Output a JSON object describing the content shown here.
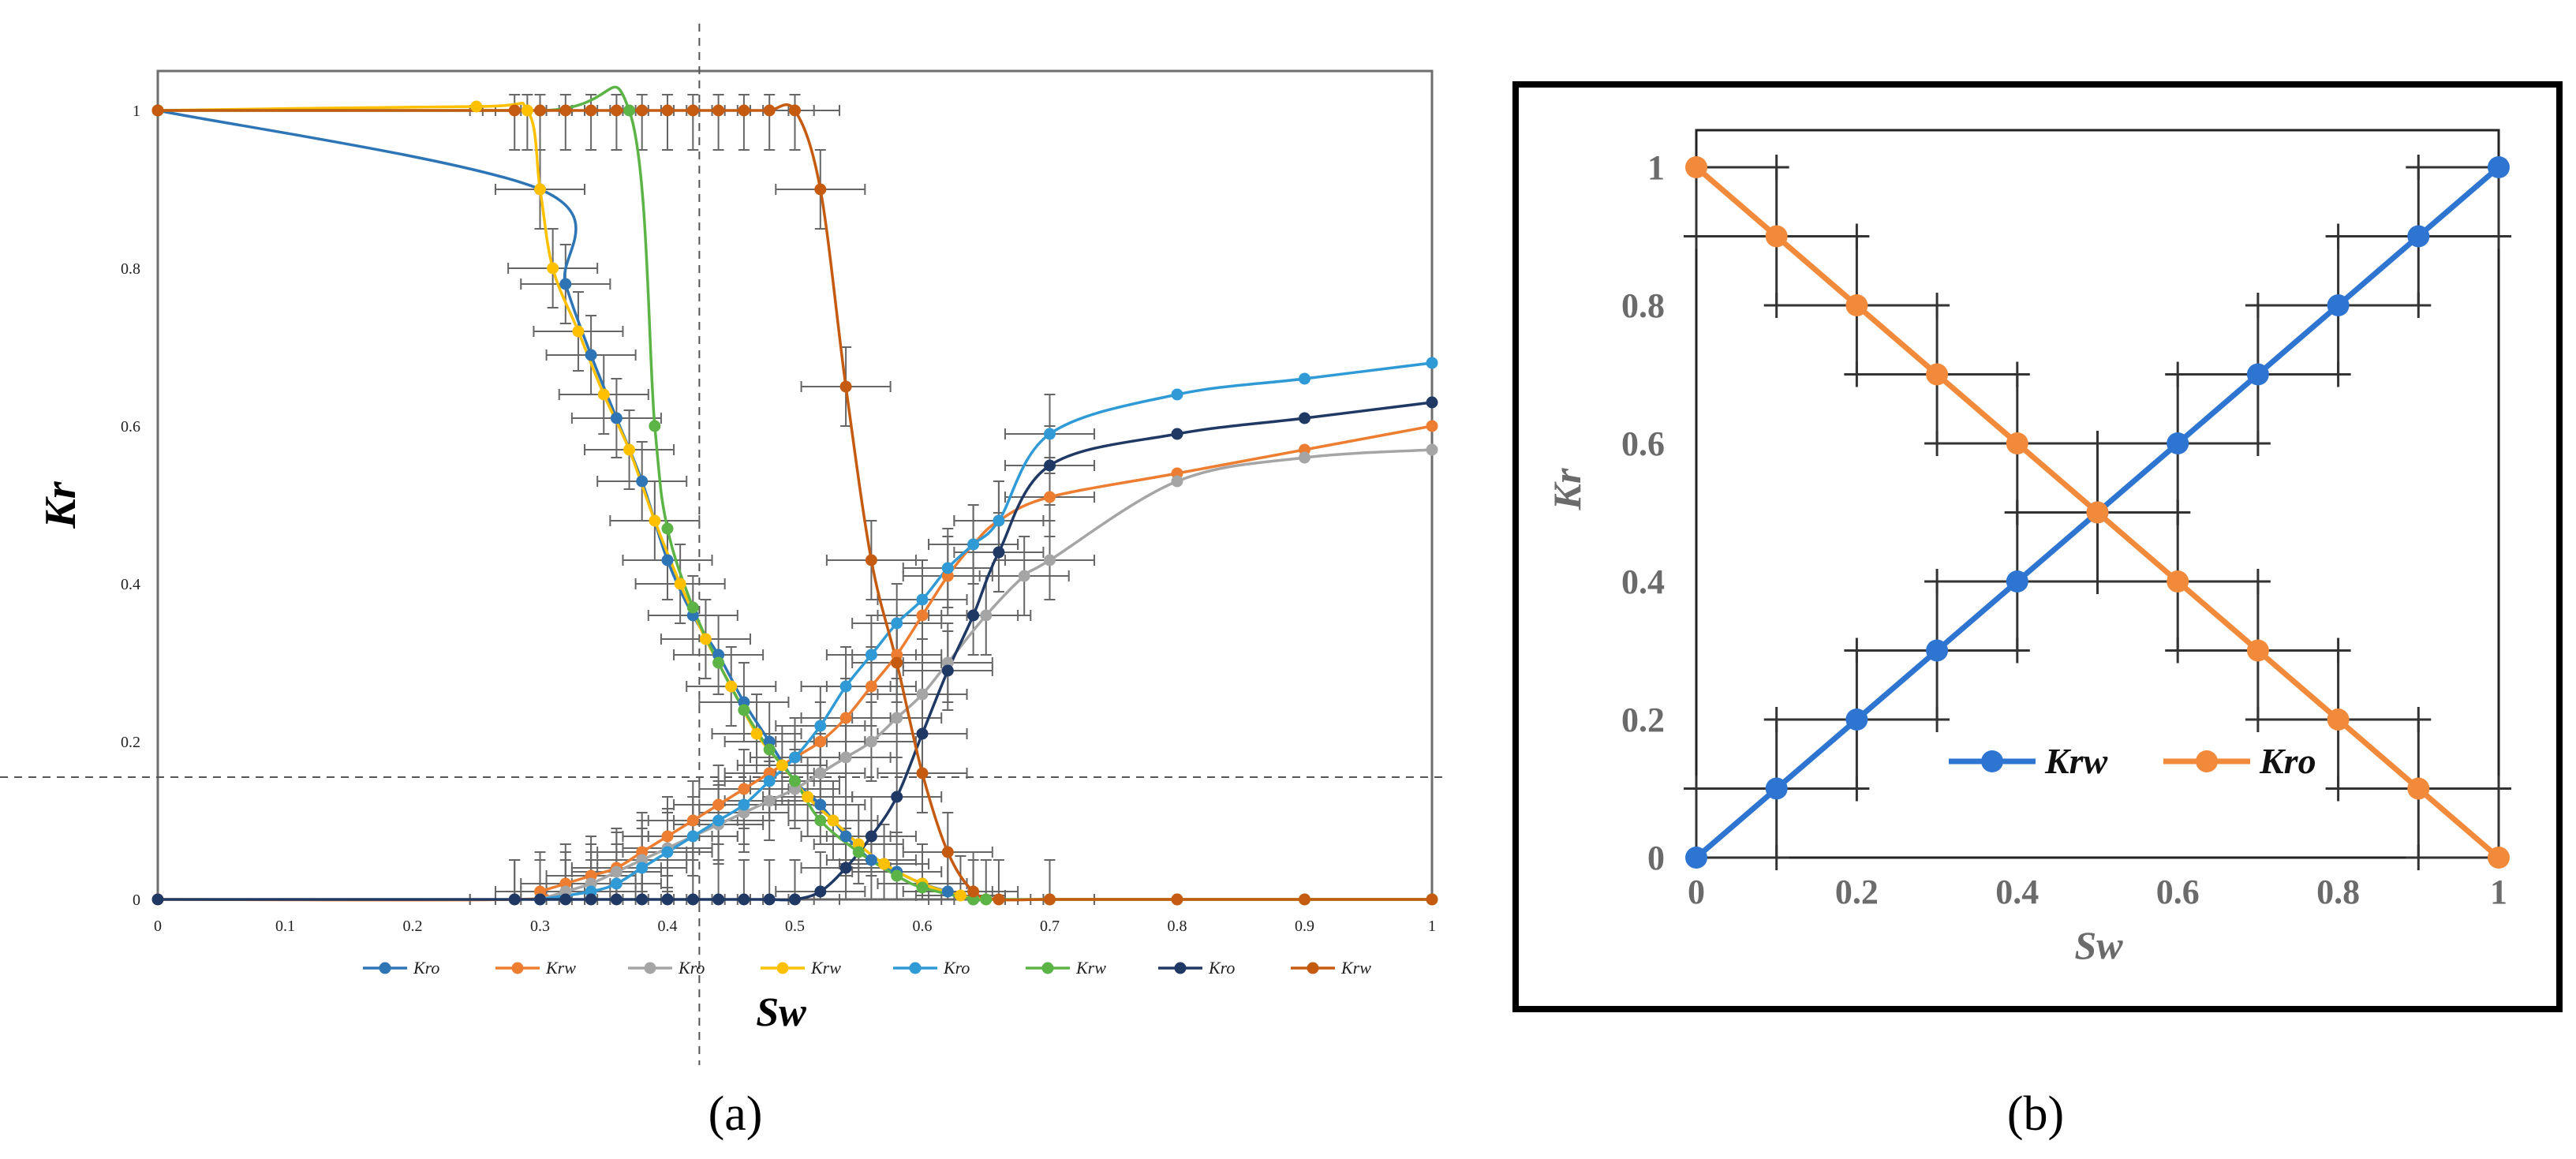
{
  "panel_labels": {
    "a": "(a)",
    "b": "(b)"
  },
  "chart_data": [
    {
      "type": "line",
      "panel": "a",
      "xlabel": "Sw",
      "ylabel": "Kr",
      "xlim": [
        0,
        1
      ],
      "ylim": [
        0,
        1
      ],
      "xticks": [
        "0",
        "0.1",
        "0.2",
        "0.3",
        "0.4",
        "0.5",
        "0.6",
        "0.7",
        "0.8",
        "0.9",
        "1"
      ],
      "yticks": [
        "0",
        "0.2",
        "0.4",
        "0.6",
        "0.8",
        "1"
      ],
      "crosshair": {
        "x": 0.425,
        "y": 0.155
      },
      "legend_position": "bottom",
      "series": [
        {
          "name": "Kro",
          "color": "#2e75b6",
          "errorbars": true,
          "x": [
            0,
            0.3,
            0.32,
            0.34,
            0.36,
            0.38,
            0.4,
            0.42,
            0.44,
            0.46,
            0.48,
            0.5,
            0.52,
            0.54,
            0.56,
            0.58,
            0.6,
            0.62,
            0.64
          ],
          "y": [
            1,
            0.9,
            0.78,
            0.69,
            0.61,
            0.53,
            0.43,
            0.36,
            0.31,
            0.25,
            0.2,
            0.15,
            0.12,
            0.08,
            0.05,
            0.035,
            0.02,
            0.01,
            0
          ]
        },
        {
          "name": "Krw",
          "color": "#ed7d31",
          "errorbars": true,
          "x": [
            0,
            0.28,
            0.3,
            0.32,
            0.34,
            0.36,
            0.38,
            0.4,
            0.42,
            0.44,
            0.46,
            0.48,
            0.5,
            0.52,
            0.54,
            0.56,
            0.58,
            0.6,
            0.62,
            0.64,
            0.66,
            0.7,
            0.8,
            0.9,
            1
          ],
          "y": [
            0,
            0,
            0.01,
            0.02,
            0.03,
            0.04,
            0.06,
            0.08,
            0.1,
            0.12,
            0.14,
            0.16,
            0.18,
            0.2,
            0.23,
            0.27,
            0.31,
            0.36,
            0.41,
            0.45,
            0.48,
            0.51,
            0.54,
            0.57,
            0.6
          ]
        },
        {
          "name": "Kro",
          "color": "#a5a5a5",
          "errorbars": true,
          "x": [
            0.3,
            0.32,
            0.34,
            0.36,
            0.38,
            0.4,
            0.42,
            0.44,
            0.46,
            0.48,
            0.5,
            0.52,
            0.54,
            0.56,
            0.58,
            0.6,
            0.62,
            0.65,
            0.68,
            0.7,
            0.8,
            0.9,
            1
          ],
          "y": [
            0,
            0.01,
            0.02,
            0.035,
            0.05,
            0.065,
            0.08,
            0.095,
            0.11,
            0.125,
            0.14,
            0.16,
            0.18,
            0.2,
            0.23,
            0.26,
            0.3,
            0.36,
            0.41,
            0.43,
            0.53,
            0.56,
            0.57
          ]
        },
        {
          "name": "Krw",
          "color": "#ffc000",
          "errorbars": true,
          "x": [
            0,
            0.25,
            0.29,
            0.3,
            0.31,
            0.33,
            0.35,
            0.37,
            0.39,
            0.41,
            0.43,
            0.45,
            0.47,
            0.49,
            0.51,
            0.53,
            0.55,
            0.57,
            0.6,
            0.63,
            0.65,
            0.7,
            0.8,
            0.9,
            1
          ],
          "y": [
            1,
            1.005,
            1,
            0.9,
            0.8,
            0.72,
            0.64,
            0.57,
            0.48,
            0.4,
            0.33,
            0.27,
            0.21,
            0.17,
            0.13,
            0.1,
            0.07,
            0.045,
            0.02,
            0.005,
            0,
            0,
            0,
            0,
            0
          ]
        },
        {
          "name": "Kro",
          "color": "#2f9ad6",
          "errorbars": true,
          "x": [
            0.3,
            0.34,
            0.36,
            0.38,
            0.4,
            0.42,
            0.44,
            0.46,
            0.48,
            0.5,
            0.52,
            0.54,
            0.56,
            0.58,
            0.6,
            0.62,
            0.64,
            0.66,
            0.7,
            0.8,
            0.9,
            1
          ],
          "y": [
            0,
            0.01,
            0.02,
            0.04,
            0.06,
            0.08,
            0.1,
            0.12,
            0.15,
            0.18,
            0.22,
            0.27,
            0.31,
            0.35,
            0.38,
            0.42,
            0.45,
            0.48,
            0.59,
            0.64,
            0.66,
            0.68
          ]
        },
        {
          "name": "Krw",
          "color": "#5bb445",
          "errorbars": false,
          "x": [
            0,
            0.3,
            0.37,
            0.39,
            0.4,
            0.42,
            0.44,
            0.46,
            0.48,
            0.5,
            0.52,
            0.55,
            0.58,
            0.6,
            0.64,
            0.65,
            0.7,
            0.8,
            0.9,
            1
          ],
          "y": [
            1,
            1,
            1,
            0.6,
            0.47,
            0.37,
            0.3,
            0.24,
            0.19,
            0.15,
            0.1,
            0.06,
            0.03,
            0.015,
            0,
            0,
            0,
            0,
            0,
            0
          ]
        },
        {
          "name": "Kro",
          "color": "#1f3864",
          "errorbars": true,
          "x": [
            0,
            0.28,
            0.3,
            0.32,
            0.34,
            0.36,
            0.38,
            0.4,
            0.42,
            0.44,
            0.46,
            0.48,
            0.5,
            0.52,
            0.54,
            0.56,
            0.58,
            0.6,
            0.62,
            0.64,
            0.66,
            0.7,
            0.8,
            0.9,
            1
          ],
          "y": [
            0,
            0,
            0,
            0,
            0,
            0,
            0,
            0,
            0,
            0,
            0,
            0,
            0,
            0.01,
            0.04,
            0.08,
            0.13,
            0.21,
            0.29,
            0.36,
            0.44,
            0.55,
            0.59,
            0.61,
            0.63
          ]
        },
        {
          "name": "Krw",
          "color": "#c55a11",
          "errorbars": true,
          "x": [
            0,
            0.28,
            0.3,
            0.32,
            0.34,
            0.36,
            0.38,
            0.4,
            0.42,
            0.44,
            0.46,
            0.48,
            0.5,
            0.52,
            0.54,
            0.56,
            0.58,
            0.6,
            0.62,
            0.64,
            0.66,
            0.7,
            0.8,
            0.9,
            1
          ],
          "y": [
            1,
            1,
            1,
            1,
            1,
            1,
            1,
            1,
            1,
            1,
            1,
            1,
            1,
            0.9,
            0.65,
            0.43,
            0.3,
            0.16,
            0.06,
            0.01,
            0,
            0,
            0,
            0,
            0
          ]
        }
      ]
    },
    {
      "type": "line",
      "panel": "b",
      "xlabel": "Sw",
      "ylabel": "Kr",
      "xlim": [
        0,
        1
      ],
      "ylim": [
        0,
        1
      ],
      "xticks": [
        "0",
        "0.2",
        "0.4",
        "0.6",
        "0.8",
        "1"
      ],
      "yticks": [
        "0",
        "0.2",
        "0.4",
        "0.6",
        "0.8",
        "1"
      ],
      "errorbar_halfwidth": 0.1,
      "legend_position": "lower-center",
      "series": [
        {
          "name": "Krw",
          "color": "#2e75d1",
          "x": [
            0,
            0.1,
            0.2,
            0.3,
            0.4,
            0.5,
            0.6,
            0.7,
            0.8,
            0.9,
            1
          ],
          "y": [
            0,
            0.1,
            0.2,
            0.3,
            0.4,
            0.5,
            0.6,
            0.7,
            0.8,
            0.9,
            1
          ]
        },
        {
          "name": "Kro",
          "color": "#f28a3b",
          "x": [
            0,
            0.1,
            0.2,
            0.3,
            0.4,
            0.5,
            0.6,
            0.7,
            0.8,
            0.9,
            1
          ],
          "y": [
            1,
            0.9,
            0.8,
            0.7,
            0.6,
            0.5,
            0.4,
            0.3,
            0.2,
            0.1,
            0
          ]
        }
      ]
    }
  ]
}
